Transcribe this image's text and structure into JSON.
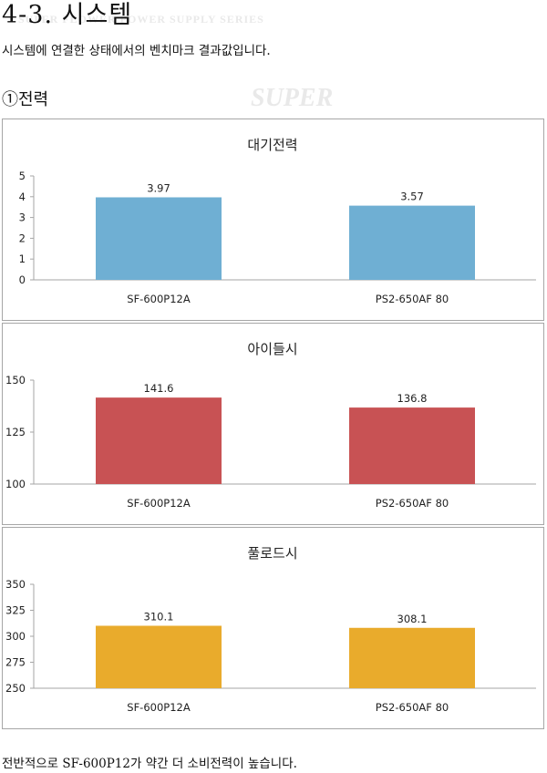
{
  "page": {
    "title": "4-3. 시스템",
    "subtitle": "시스템에 연결한 상태에서의 벤치마크 결과값입니다.",
    "section": "①전력",
    "footer": "전반적으로 SF-600P12가 약간 더 소비전력이 높습니다.",
    "watermark_main": "SUPER",
    "watermark_header": "SUPER FLOWER POWER SUPPLY SERIES"
  },
  "chart_data": [
    {
      "type": "bar",
      "title": "대기전력",
      "categories": [
        "SF-600P12A",
        "PS2-650AF 80"
      ],
      "values": [
        3.97,
        3.57
      ],
      "value_labels": [
        "3.97",
        "3.57"
      ],
      "ylim": [
        0,
        5
      ],
      "yticks": [
        0,
        1,
        2,
        3,
        4,
        5
      ],
      "color": "#6fafd3",
      "grid": false,
      "legend": "none"
    },
    {
      "type": "bar",
      "title": "아이들시",
      "categories": [
        "SF-600P12A",
        "PS2-650AF 80"
      ],
      "values": [
        141.6,
        136.8
      ],
      "value_labels": [
        "141.6",
        "136.8"
      ],
      "ylim": [
        100,
        150
      ],
      "yticks": [
        100,
        125,
        150
      ],
      "color": "#c85254",
      "grid": false,
      "legend": "none"
    },
    {
      "type": "bar",
      "title": "풀로드시",
      "categories": [
        "SF-600P12A",
        "PS2-650AF 80"
      ],
      "values": [
        310.1,
        308.1
      ],
      "value_labels": [
        "310.1",
        "308.1"
      ],
      "ylim": [
        250,
        350
      ],
      "yticks": [
        250,
        275,
        300,
        325,
        350
      ],
      "color": "#e9ab2c",
      "grid": false,
      "legend": "none"
    }
  ]
}
